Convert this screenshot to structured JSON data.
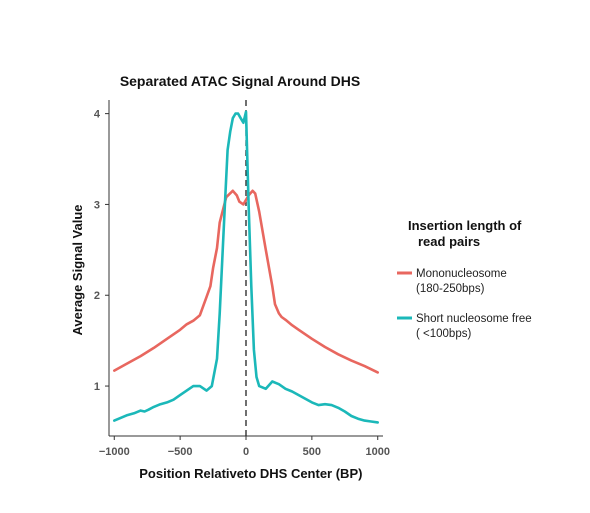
{
  "chart_data": {
    "type": "line",
    "title": "Separated ATAC Signal Around DHS",
    "xlabel_left": "Position Relative",
    "xlabel_right": "to DHS Center (BP)",
    "ylabel": "Average Signal  Value",
    "xlim": [
      -1040,
      1040
    ],
    "ylim": [
      0.45,
      4.15
    ],
    "xticks": [
      -1000,
      -500,
      0,
      500,
      1000
    ],
    "xtick_labels": [
      "−1000",
      "−500",
      "0",
      "500",
      "1000"
    ],
    "yticks": [
      1,
      2,
      3,
      4
    ],
    "ytick_labels": [
      "1",
      "2",
      "3",
      "4"
    ],
    "grid": false,
    "legend_position": "right",
    "legend_title_line1": "Insertion length of",
    "legend_title_line2": "read pairs",
    "series": [
      {
        "name_line1": "Mononucleosome",
        "name_line2": "(180-250bps)",
        "color": "#e8675f",
        "x": [
          -1000,
          -900,
          -800,
          -700,
          -600,
          -500,
          -450,
          -400,
          -350,
          -300,
          -270,
          -250,
          -220,
          -200,
          -150,
          -100,
          -70,
          -50,
          -20,
          0,
          20,
          50,
          70,
          100,
          150,
          200,
          220,
          250,
          270,
          300,
          350,
          400,
          450,
          500,
          600,
          700,
          800,
          900,
          1000
        ],
        "y": [
          1.17,
          1.25,
          1.33,
          1.42,
          1.52,
          1.62,
          1.68,
          1.72,
          1.78,
          1.98,
          2.1,
          2.3,
          2.52,
          2.8,
          3.08,
          3.15,
          3.1,
          3.03,
          3.0,
          3.05,
          3.1,
          3.15,
          3.12,
          2.92,
          2.5,
          2.1,
          1.9,
          1.8,
          1.76,
          1.73,
          1.67,
          1.62,
          1.57,
          1.52,
          1.43,
          1.35,
          1.28,
          1.22,
          1.15
        ]
      },
      {
        "name_line1": "Short nucleosome free",
        "name_line2": "( <100bps)",
        "color": "#1bb8b9",
        "x": [
          -1000,
          -950,
          -900,
          -850,
          -800,
          -770,
          -740,
          -700,
          -650,
          -600,
          -550,
          -500,
          -450,
          -400,
          -350,
          -300,
          -260,
          -220,
          -200,
          -180,
          -160,
          -140,
          -120,
          -100,
          -80,
          -60,
          -40,
          -20,
          0,
          20,
          40,
          60,
          80,
          100,
          150,
          200,
          250,
          300,
          350,
          400,
          450,
          500,
          550,
          600,
          650,
          700,
          750,
          800,
          850,
          900,
          950,
          1000
        ],
        "y": [
          0.62,
          0.65,
          0.68,
          0.7,
          0.73,
          0.72,
          0.74,
          0.77,
          0.8,
          0.82,
          0.85,
          0.9,
          0.95,
          1.0,
          1.0,
          0.95,
          1.0,
          1.3,
          1.8,
          2.4,
          3.0,
          3.6,
          3.8,
          3.95,
          4.0,
          4.0,
          3.95,
          3.9,
          4.02,
          3.0,
          2.1,
          1.4,
          1.1,
          1.0,
          0.97,
          1.05,
          1.02,
          0.97,
          0.94,
          0.9,
          0.86,
          0.82,
          0.79,
          0.8,
          0.79,
          0.76,
          0.72,
          0.67,
          0.64,
          0.62,
          0.61,
          0.6
        ]
      }
    ]
  }
}
